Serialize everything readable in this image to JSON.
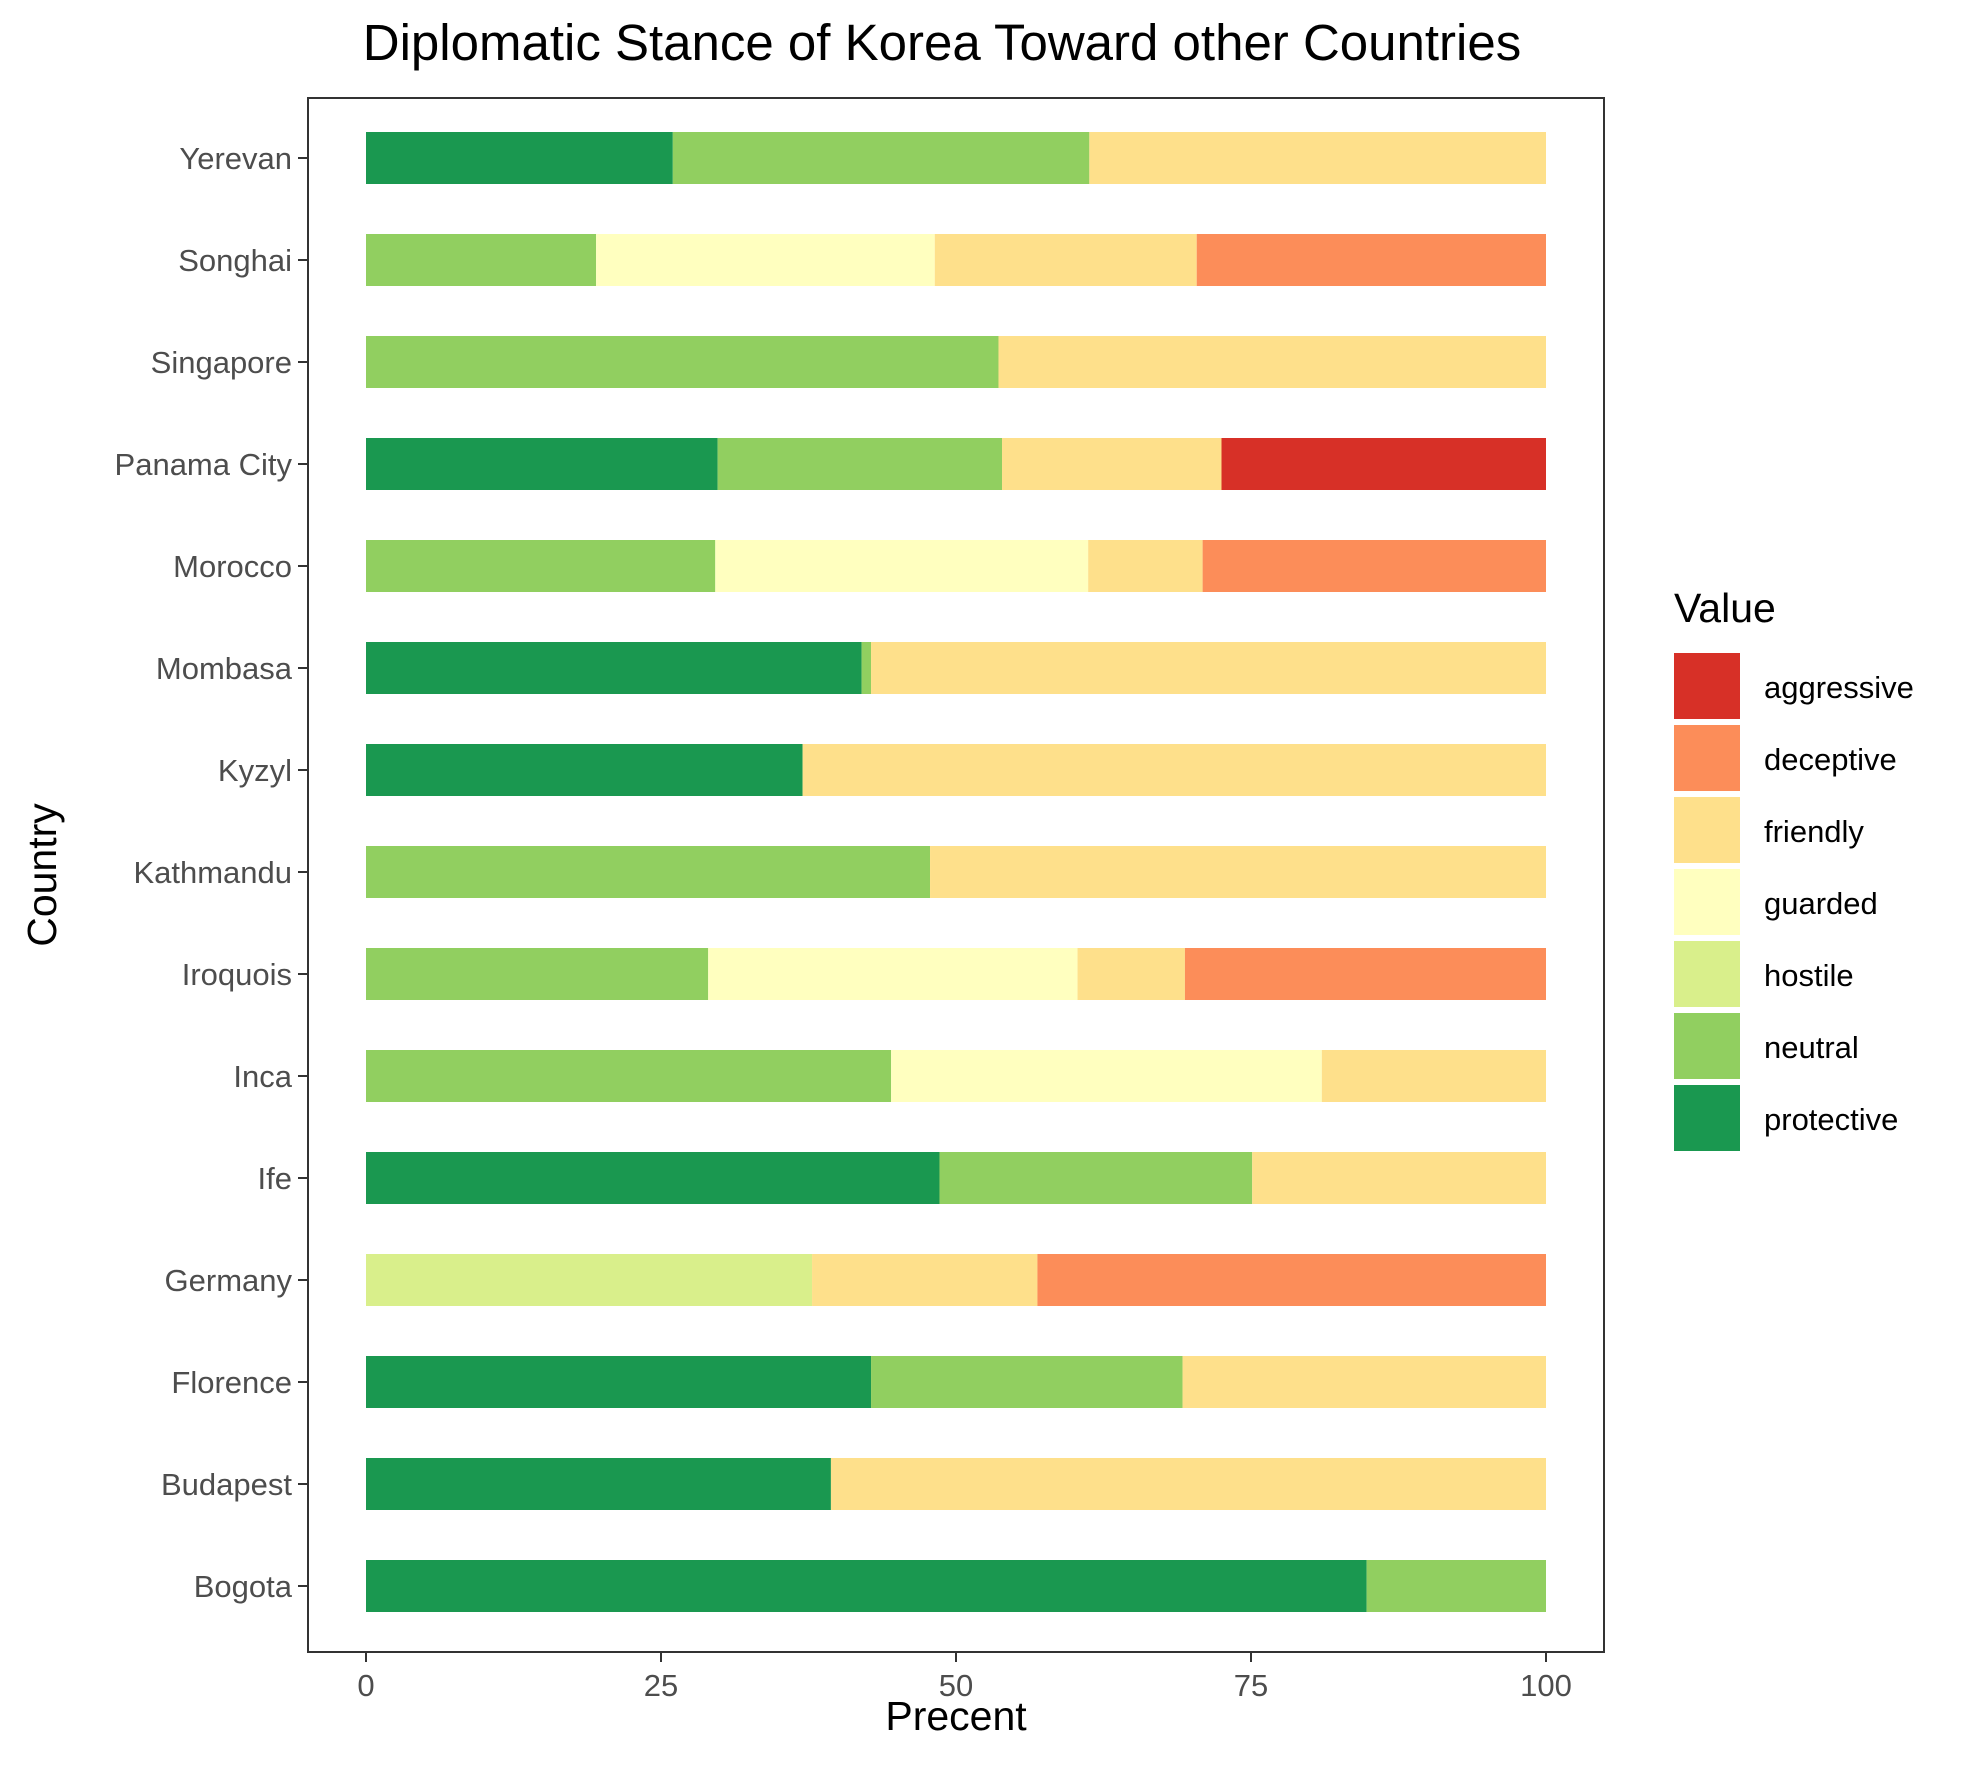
{
  "chart_data": {
    "type": "bar",
    "orientation": "horizontal",
    "stacked": true,
    "title": "Diplomatic Stance of Korea Toward other Countries",
    "xlabel": "Precent",
    "ylabel": "Country",
    "xlim": [
      0,
      100
    ],
    "xticks": [
      "0",
      "25",
      "50",
      "75",
      "100"
    ],
    "grid": false,
    "legend": {
      "title": "Value",
      "position": "right",
      "entries": [
        "aggressive",
        "deceptive",
        "friendly",
        "guarded",
        "hostile",
        "neutral",
        "protective"
      ]
    },
    "colors": {
      "aggressive": "#d73027",
      "deceptive": "#fc8d59",
      "friendly": "#fee08b",
      "guarded": "#ffffbf",
      "hostile": "#d9ef8b",
      "neutral": "#91cf60",
      "protective": "#1a9850"
    },
    "stack_order": [
      "protective",
      "neutral",
      "hostile",
      "guarded",
      "friendly",
      "deceptive",
      "aggressive"
    ],
    "categories": [
      "Yerevan",
      "Songhai",
      "Singapore",
      "Panama City",
      "Morocco",
      "Mombasa",
      "Kyzyl",
      "Kathmandu",
      "Iroquois",
      "Inca",
      "Ife",
      "Germany",
      "Florence",
      "Budapest",
      "Bogota"
    ],
    "series": [
      {
        "name": "protective",
        "values": [
          26,
          0,
          0,
          29.8,
          0,
          42,
          37,
          0,
          0,
          0,
          48.6,
          0,
          42.8,
          39.4,
          84.8
        ]
      },
      {
        "name": "neutral",
        "values": [
          35.3,
          19.5,
          53.6,
          24.1,
          29.6,
          0.8,
          0,
          47.8,
          29,
          44.5,
          26.5,
          0,
          26.4,
          0,
          15.2
        ]
      },
      {
        "name": "hostile",
        "values": [
          0,
          0,
          0,
          0,
          0,
          0,
          0,
          0,
          0,
          0,
          0,
          37.8,
          0,
          0,
          0
        ]
      },
      {
        "name": "guarded",
        "values": [
          0,
          28.7,
          0,
          0,
          31.6,
          0,
          0,
          0,
          31.3,
          36.5,
          0,
          0,
          0,
          0,
          0
        ]
      },
      {
        "name": "friendly",
        "values": [
          38.7,
          22.2,
          46.4,
          18.6,
          9.7,
          57.2,
          63,
          52.2,
          9.1,
          19,
          24.9,
          19.1,
          30.8,
          60.6,
          0
        ]
      },
      {
        "name": "deceptive",
        "values": [
          0,
          29.6,
          0,
          0,
          29.1,
          0,
          0,
          0,
          30.6,
          0,
          0,
          43.1,
          0,
          0,
          0
        ]
      },
      {
        "name": "aggressive",
        "values": [
          0,
          0,
          0,
          27.5,
          0,
          0,
          0,
          0,
          0,
          0,
          0,
          0,
          0,
          0,
          0
        ]
      }
    ]
  }
}
